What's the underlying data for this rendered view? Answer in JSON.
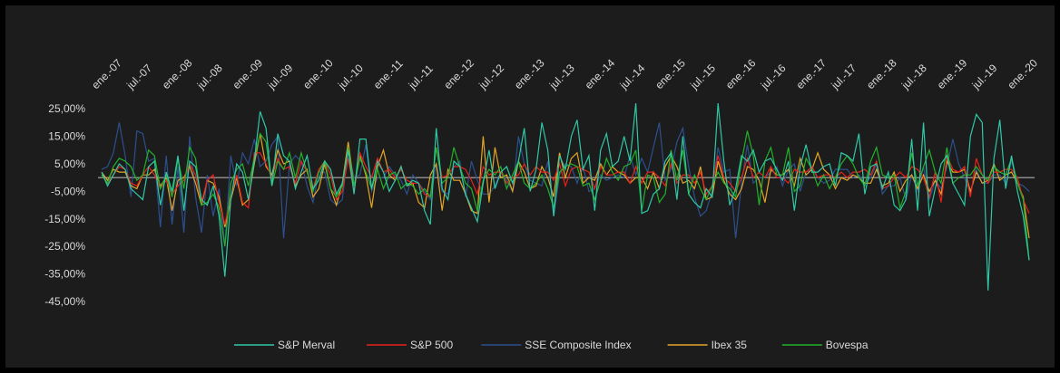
{
  "chart_data": {
    "type": "line",
    "categories": [
      "ene.-07",
      null,
      null,
      null,
      null,
      null,
      "jul.-07",
      null,
      null,
      null,
      null,
      null,
      "ene.-08",
      null,
      null,
      null,
      null,
      null,
      "jul.-08",
      null,
      null,
      null,
      null,
      null,
      "ene.-09",
      null,
      null,
      null,
      null,
      null,
      "jul.-09",
      null,
      null,
      null,
      null,
      null,
      "ene.-10",
      null,
      null,
      null,
      null,
      null,
      "jul.-10",
      null,
      null,
      null,
      null,
      null,
      "ene.-11",
      null,
      null,
      null,
      null,
      null,
      "jul.-11",
      null,
      null,
      null,
      null,
      null,
      "ene.-12",
      null,
      null,
      null,
      null,
      null,
      "jul.-12",
      null,
      null,
      null,
      null,
      null,
      "ene.-13",
      null,
      null,
      null,
      null,
      null,
      "jul.-13",
      null,
      null,
      null,
      null,
      null,
      "ene.-14",
      null,
      null,
      null,
      null,
      null,
      "jul.-14",
      null,
      null,
      null,
      null,
      null,
      "ene.-15",
      null,
      null,
      null,
      null,
      null,
      "jul.-15",
      null,
      null,
      null,
      null,
      null,
      "ene.-16",
      null,
      null,
      null,
      null,
      null,
      "jul.-16",
      null,
      null,
      null,
      null,
      null,
      "ene.-17",
      null,
      null,
      null,
      null,
      null,
      "jul.-17",
      null,
      null,
      null,
      null,
      null,
      "ene.-18",
      null,
      null,
      null,
      null,
      null,
      "jul.-18",
      null,
      null,
      null,
      null,
      null,
      "ene.-19",
      null,
      null,
      null,
      null,
      null,
      "jul.-19",
      null,
      null,
      null,
      null,
      null,
      "ene.-20",
      null,
      null
    ],
    "series": [
      {
        "name": "S&P Merval",
        "color": "#2fc8a6",
        "values": [
          2,
          -3,
          1,
          5,
          3,
          -4,
          -6,
          -8,
          4,
          6,
          -10,
          2,
          -5,
          8,
          -12,
          6,
          4,
          -8,
          -10,
          -3,
          -14,
          -36,
          -8,
          5,
          2,
          -8,
          6,
          24,
          18,
          -3,
          16,
          8,
          6,
          -4,
          2,
          8,
          -4,
          -1,
          6,
          3,
          -6,
          -2,
          10,
          -6,
          14,
          14,
          -4,
          6,
          2,
          -5,
          -1,
          4,
          -3,
          -1,
          -2,
          -12,
          -17,
          18,
          -4,
          -8,
          6,
          4,
          -6,
          -11,
          -16,
          -2,
          10,
          -4,
          2,
          4,
          -2,
          6,
          18,
          -5,
          3,
          20,
          10,
          -14,
          8,
          3,
          15,
          21,
          3,
          8,
          -12,
          10,
          16,
          4,
          6,
          15,
          6,
          27,
          -13,
          -12,
          -6,
          -4,
          6,
          9,
          -8,
          15,
          -6,
          -9,
          -11,
          -4,
          -7,
          27,
          6,
          -10,
          -4,
          8,
          6,
          10,
          2,
          6,
          7,
          3,
          -1,
          6,
          -12,
          4,
          12,
          2,
          2,
          4,
          5,
          -3,
          9,
          8,
          6,
          16,
          -6,
          4,
          5,
          -4,
          2,
          -10,
          -12,
          -8,
          14,
          -12,
          20,
          -14,
          -4,
          5,
          8,
          -2,
          -6,
          -10,
          15,
          23,
          20,
          -41,
          7,
          21,
          -4,
          8,
          -5,
          -14,
          -30
        ]
      },
      {
        "name": "S&P 500",
        "color": "#e8221c",
        "values": [
          1,
          -2,
          1,
          4,
          3,
          -2,
          -3,
          1,
          4,
          1,
          -4,
          -1,
          -6,
          -3,
          -1,
          5,
          1,
          -9,
          -1,
          1,
          -9,
          -17,
          -7,
          1,
          -9,
          -11,
          9,
          9,
          5,
          0,
          7,
          3,
          4,
          -2,
          6,
          2,
          -4,
          3,
          6,
          1,
          -8,
          -5,
          7,
          -5,
          9,
          4,
          0,
          7,
          2,
          3,
          0,
          3,
          -1,
          -2,
          -2,
          -6,
          -7,
          11,
          0,
          1,
          4,
          4,
          3,
          -1,
          -6,
          4,
          1,
          2,
          2,
          -2,
          0,
          1,
          5,
          1,
          4,
          2,
          2,
          -1,
          5,
          -3,
          3,
          4,
          3,
          2,
          -4,
          4,
          1,
          1,
          2,
          2,
          -2,
          4,
          -2,
          2,
          2,
          0,
          -3,
          5,
          -2,
          1,
          1,
          -2,
          2,
          -6,
          -3,
          8,
          0,
          -2,
          -5,
          0,
          7,
          0,
          2,
          0,
          4,
          0,
          0,
          -2,
          3,
          2,
          2,
          4,
          0,
          1,
          1,
          0,
          2,
          0,
          2,
          2,
          3,
          1,
          6,
          -4,
          -3,
          0,
          2,
          0,
          4,
          3,
          0,
          -7,
          2,
          -9,
          8,
          3,
          2,
          4,
          -7,
          7,
          1,
          -2,
          2,
          2,
          3,
          3,
          0,
          -8,
          -13
        ]
      },
      {
        "name": "SSE Composite Index",
        "color": "#2d4f8e",
        "values": [
          3,
          4,
          9,
          20,
          8,
          -7,
          17,
          16,
          6,
          7,
          -18,
          8,
          -17,
          4,
          -20,
          15,
          -7,
          -20,
          1,
          -14,
          -4,
          -25,
          8,
          -3,
          9,
          5,
          14,
          4,
          6,
          12,
          15,
          -22,
          5,
          8,
          6,
          -3,
          -9,
          2,
          2,
          -8,
          -10,
          -8,
          10,
          0,
          1,
          12,
          -5,
          0,
          0,
          4,
          1,
          -1,
          -6,
          1,
          -2,
          -5,
          -8,
          5,
          -5,
          -6,
          4,
          6,
          -7,
          6,
          -1,
          -6,
          -6,
          -3,
          2,
          -1,
          -5,
          15,
          5,
          -1,
          -2,
          -3,
          6,
          -14,
          1,
          5,
          4,
          -2,
          4,
          -5,
          -4,
          1,
          -1,
          0,
          1,
          0,
          8,
          1,
          7,
          2,
          11,
          20,
          -1,
          3,
          13,
          18,
          4,
          -7,
          -14,
          -12,
          -5,
          11,
          2,
          3,
          -22,
          -2,
          12,
          -2,
          0,
          0,
          2,
          4,
          -3,
          3,
          5,
          -5,
          2,
          3,
          0,
          -2,
          -1,
          3,
          3,
          3,
          0,
          1,
          -2,
          0,
          5,
          -6,
          -3,
          -3,
          0,
          -8,
          1,
          -5,
          4,
          -8,
          -1,
          -4,
          4,
          14,
          5,
          0,
          -6,
          3,
          -2,
          -2,
          1,
          1,
          -2,
          6,
          -2,
          -3,
          -5
        ]
      },
      {
        "name": "Ibex 35",
        "color": "#e3a526",
        "values": [
          2,
          -1,
          3,
          2,
          2,
          -3,
          -4,
          1,
          1,
          3,
          -3,
          0,
          -12,
          -1,
          0,
          4,
          -2,
          -10,
          -1,
          -2,
          -7,
          -18,
          -8,
          0,
          -10,
          -8,
          5,
          16,
          4,
          1,
          10,
          5,
          6,
          -3,
          1,
          3,
          -7,
          -4,
          5,
          -4,
          -10,
          -2,
          13,
          -3,
          8,
          1,
          -11,
          4,
          10,
          1,
          -1,
          4,
          -3,
          -2,
          -9,
          -11,
          1,
          5,
          -12,
          3,
          -1,
          -1,
          -6,
          -12,
          -13,
          15,
          -9,
          11,
          0,
          1,
          -5,
          6,
          2,
          -4,
          -3,
          4,
          0,
          -7,
          9,
          0,
          7,
          9,
          -2,
          0,
          -1,
          5,
          1,
          4,
          2,
          1,
          -2,
          0,
          0,
          -4,
          2,
          -4,
          4,
          8,
          4,
          -2,
          -1,
          -4,
          4,
          -8,
          -7,
          6,
          -1,
          -6,
          -8,
          -4,
          4,
          3,
          -1,
          -9,
          3,
          1,
          1,
          3,
          -3,
          7,
          1,
          3,
          9,
          3,
          1,
          -4,
          0,
          -1,
          1,
          0,
          -2,
          -2,
          3,
          -3,
          -2,
          2,
          -5,
          -1,
          1,
          -4,
          1,
          -5,
          -1,
          -6,
          6,
          2,
          2,
          3,
          -5,
          2,
          -2,
          -1,
          5,
          -1,
          1,
          2,
          -2,
          -7,
          -22
        ]
      },
      {
        "name": "Bovespa",
        "color": "#22b22a",
        "values": [
          1,
          -2,
          4,
          7,
          6,
          4,
          -1,
          1,
          10,
          8,
          -4,
          1,
          -7,
          7,
          -4,
          11,
          7,
          -10,
          -9,
          -6,
          -11,
          -25,
          -2,
          3,
          5,
          -3,
          7,
          16,
          13,
          -3,
          6,
          3,
          9,
          0,
          9,
          2,
          -5,
          2,
          6,
          -4,
          -7,
          -3,
          11,
          -3,
          7,
          2,
          -4,
          3,
          -4,
          1,
          2,
          -4,
          -2,
          -3,
          -6,
          -4,
          -7,
          11,
          -2,
          0,
          11,
          4,
          -2,
          -4,
          -12,
          -1,
          3,
          1,
          4,
          -4,
          1,
          6,
          -2,
          -4,
          -2,
          1,
          -4,
          -11,
          2,
          4,
          5,
          4,
          -3,
          -2,
          -8,
          -1,
          7,
          2,
          -1,
          4,
          5,
          10,
          -12,
          1,
          0,
          -9,
          -6,
          10,
          -1,
          10,
          -6,
          1,
          -4,
          -8,
          -3,
          2,
          -2,
          -4,
          -7,
          6,
          17,
          8,
          -10,
          6,
          11,
          1,
          1,
          11,
          -5,
          -3,
          7,
          3,
          -3,
          1,
          -4,
          0,
          5,
          8,
          5,
          0,
          -3,
          6,
          11,
          1,
          0,
          1,
          -11,
          -5,
          9,
          -3,
          4,
          10,
          2,
          -2,
          11,
          -2,
          0,
          1,
          1,
          4,
          1,
          -1,
          4,
          2,
          1,
          7,
          -2,
          -8,
          -30
        ]
      }
    ],
    "ylim": [
      -45,
      30
    ],
    "yticks": [
      {
        "value": 25,
        "label": "25,00%"
      },
      {
        "value": 15,
        "label": "15,00%"
      },
      {
        "value": 5,
        "label": "5,00%"
      },
      {
        "value": -5,
        "label": "-5,00%"
      },
      {
        "value": -15,
        "label": "-15,00%"
      },
      {
        "value": -25,
        "label": "-25,00%"
      },
      {
        "value": -35,
        "label": "-35,00%"
      },
      {
        "value": -45,
        "label": "-45,00%"
      }
    ],
    "grid": false,
    "legend": "bottom"
  }
}
